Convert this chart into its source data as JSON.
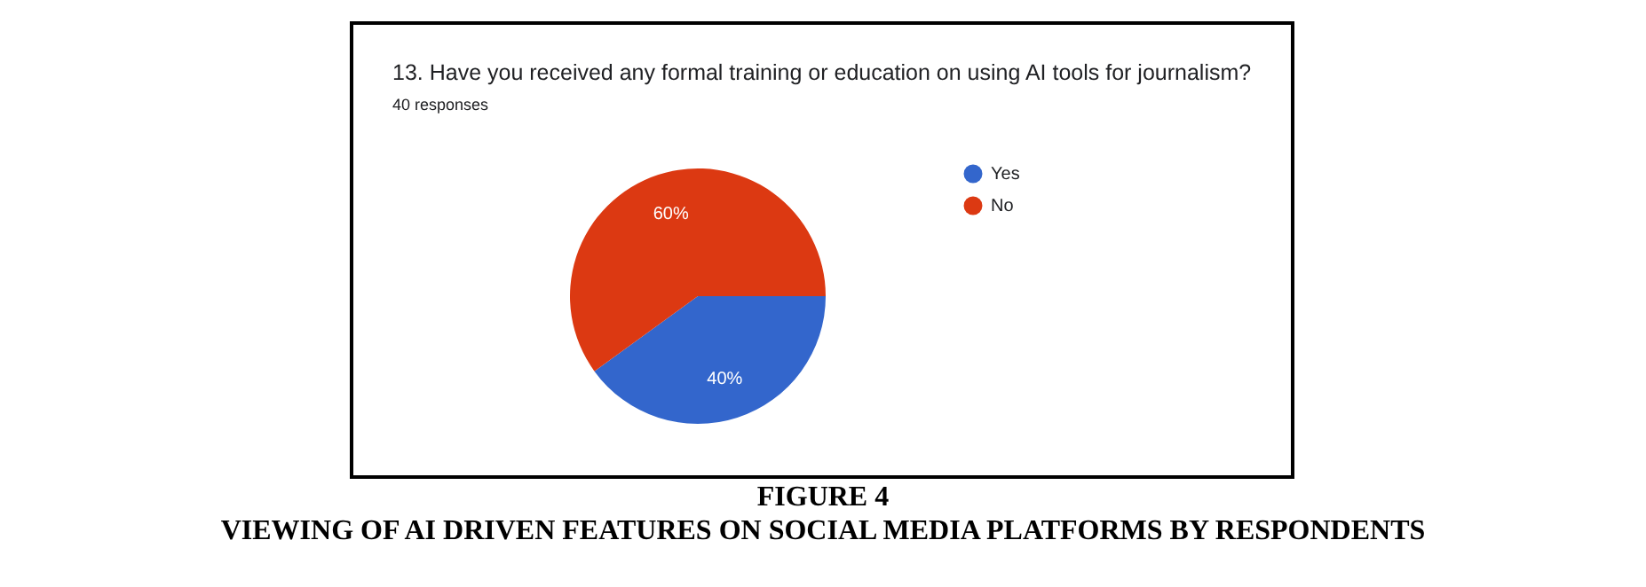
{
  "chart_data": {
    "type": "pie",
    "title": "13. Have you received any formal training or education on using AI tools for journalism?",
    "subtitle": "40 responses",
    "categories": [
      "Yes",
      "No"
    ],
    "values": [
      40,
      60
    ],
    "colors": [
      "#3366cc",
      "#dc3912"
    ],
    "value_labels": [
      "40%",
      "60%"
    ],
    "legend": "top right",
    "annotations": [
      "FIGURE 4",
      "VIEWING OF AI DRIVEN FEATURES ON SOCIAL MEDIA PLATFORMS BY RESPONDENTS"
    ]
  }
}
